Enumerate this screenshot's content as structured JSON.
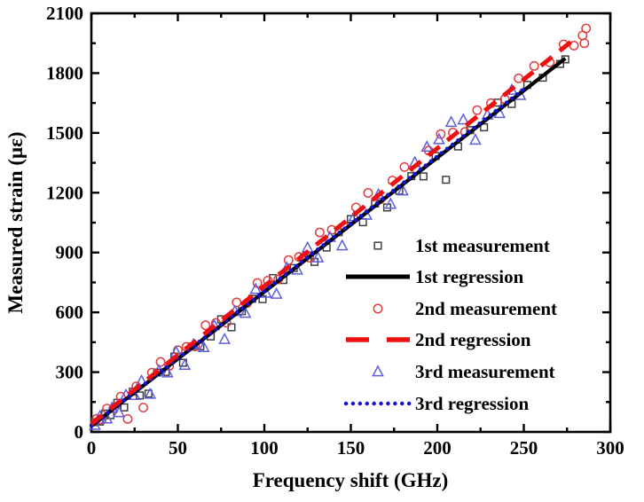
{
  "figure": {
    "background": "#ffffff",
    "frame_color": "#000000"
  },
  "chart_data": {
    "type": "scatter",
    "title": "",
    "xlabel": "Frequency shift (GHz)",
    "ylabel": "Measured strain (με)",
    "xlim": [
      0,
      300
    ],
    "ylim": [
      0,
      2100
    ],
    "xticks": [
      0,
      50,
      100,
      150,
      200,
      250,
      300
    ],
    "xticks_minor": [
      25,
      75,
      125,
      175,
      225,
      275
    ],
    "yticks": [
      0,
      300,
      600,
      900,
      1200,
      1500,
      1800,
      2100
    ],
    "yticks_minor": [
      150,
      450,
      750,
      1050,
      1350,
      1650,
      1950
    ],
    "grid": false,
    "legend_position": "inside-lower-right",
    "series": [
      {
        "name": "1st measurement",
        "kind": "scatter",
        "marker": "square",
        "color": "#3f3f3f",
        "points": [
          [
            2,
            49
          ],
          [
            5,
            52
          ],
          [
            8,
            92
          ],
          [
            11,
            84
          ],
          [
            15,
            146
          ],
          [
            19,
            123
          ],
          [
            24,
            202
          ],
          [
            28,
            183
          ],
          [
            33,
            192
          ],
          [
            38,
            298
          ],
          [
            43,
            301
          ],
          [
            48,
            378
          ],
          [
            53,
            347
          ],
          [
            58,
            428
          ],
          [
            63,
            429
          ],
          [
            69,
            479
          ],
          [
            75,
            565
          ],
          [
            81,
            525
          ],
          [
            87,
            606
          ],
          [
            93,
            668
          ],
          [
            99,
            666
          ],
          [
            105,
            772
          ],
          [
            111,
            762
          ],
          [
            117,
            822
          ],
          [
            123,
            876
          ],
          [
            129,
            853
          ],
          [
            136,
            925
          ],
          [
            143,
            1002
          ],
          [
            150,
            1068
          ],
          [
            157,
            1052
          ],
          [
            164,
            1146
          ],
          [
            171,
            1126
          ],
          [
            178,
            1210
          ],
          [
            185,
            1283
          ],
          [
            192,
            1282
          ],
          [
            199,
            1384
          ],
          [
            205,
            1265
          ],
          [
            212,
            1432
          ],
          [
            219,
            1514
          ],
          [
            227,
            1528
          ],
          [
            235,
            1652
          ],
          [
            243,
            1645
          ],
          [
            252,
            1741
          ],
          [
            261,
            1777
          ],
          [
            271,
            1846
          ],
          [
            274,
            1869
          ]
        ]
      },
      {
        "name": "1st regression",
        "kind": "line",
        "style": "solid",
        "color": "#000000",
        "line": {
          "x1": 0,
          "y1": 30,
          "x2": 274,
          "y2": 1874
        }
      },
      {
        "name": "2nd measurement",
        "kind": "scatter",
        "marker": "circle",
        "color": "#e03c3c",
        "points": [
          [
            3,
            66
          ],
          [
            6,
            61
          ],
          [
            9,
            117
          ],
          [
            13,
            117
          ],
          [
            17,
            177
          ],
          [
            21,
            65
          ],
          [
            26,
            229
          ],
          [
            30,
            122
          ],
          [
            35,
            297
          ],
          [
            40,
            351
          ],
          [
            45,
            331
          ],
          [
            50,
            410
          ],
          [
            55,
            427
          ],
          [
            60,
            429
          ],
          [
            66,
            535
          ],
          [
            72,
            547
          ],
          [
            78,
            548
          ],
          [
            84,
            650
          ],
          [
            90,
            646
          ],
          [
            96,
            747
          ],
          [
            102,
            759
          ],
          [
            108,
            765
          ],
          [
            114,
            862
          ],
          [
            120,
            878
          ],
          [
            126,
            874
          ],
          [
            132,
            1001
          ],
          [
            139,
            1014
          ],
          [
            146,
            1030
          ],
          [
            153,
            1126
          ],
          [
            160,
            1199
          ],
          [
            167,
            1167
          ],
          [
            174,
            1261
          ],
          [
            181,
            1329
          ],
          [
            188,
            1317
          ],
          [
            195,
            1411
          ],
          [
            202,
            1494
          ],
          [
            209,
            1502
          ],
          [
            216,
            1505
          ],
          [
            223,
            1614
          ],
          [
            231,
            1649
          ],
          [
            239,
            1669
          ],
          [
            247,
            1774
          ],
          [
            256,
            1836
          ],
          [
            265,
            1854
          ],
          [
            273,
            1944
          ],
          [
            279,
            1938
          ],
          [
            284,
            1989
          ],
          [
            285,
            1950
          ],
          [
            286,
            2024
          ]
        ]
      },
      {
        "name": "2nd regression",
        "kind": "line",
        "style": "dashed",
        "color": "#ee0f0f",
        "line": {
          "x1": 0,
          "y1": 40,
          "x2": 278,
          "y2": 1962
        }
      },
      {
        "name": "3rd measurement",
        "kind": "scatter",
        "marker": "triangle",
        "color": "#5d5de0",
        "points": [
          [
            2,
            34
          ],
          [
            5,
            79
          ],
          [
            9,
            66
          ],
          [
            12,
            121
          ],
          [
            16,
            98
          ],
          [
            20,
            185
          ],
          [
            25,
            184
          ],
          [
            29,
            256
          ],
          [
            34,
            190
          ],
          [
            39,
            308
          ],
          [
            44,
            297
          ],
          [
            49,
            401
          ],
          [
            54,
            335
          ],
          [
            59,
            438
          ],
          [
            65,
            424
          ],
          [
            71,
            534
          ],
          [
            77,
            465
          ],
          [
            83,
            605
          ],
          [
            89,
            596
          ],
          [
            95,
            716
          ],
          [
            101,
            697
          ],
          [
            107,
            692
          ],
          [
            113,
            823
          ],
          [
            119,
            813
          ],
          [
            125,
            924
          ],
          [
            131,
            874
          ],
          [
            138,
            977
          ],
          [
            145,
            934
          ],
          [
            152,
            1081
          ],
          [
            159,
            1088
          ],
          [
            166,
            1191
          ],
          [
            173,
            1143
          ],
          [
            180,
            1210
          ],
          [
            187,
            1352
          ],
          [
            194,
            1430
          ],
          [
            201,
            1467
          ],
          [
            208,
            1554
          ],
          [
            215,
            1566
          ],
          [
            222,
            1465
          ],
          [
            229,
            1591
          ],
          [
            236,
            1598
          ],
          [
            243,
            1715
          ],
          [
            248,
            1689
          ]
        ]
      },
      {
        "name": "3rd regression",
        "kind": "line",
        "style": "dotted",
        "color": "#1111cc",
        "line": {
          "x1": 0,
          "y1": 32,
          "x2": 250,
          "y2": 1720
        }
      }
    ],
    "legend": [
      {
        "label": "1st measurement",
        "swatch": "square-marker",
        "color": "#3f3f3f"
      },
      {
        "label": "1st regression",
        "swatch": "solid-line",
        "color": "#000000"
      },
      {
        "label": "2nd measurement",
        "swatch": "circle-marker",
        "color": "#e03c3c"
      },
      {
        "label": "2nd regression",
        "swatch": "dashed-line",
        "color": "#ee0f0f"
      },
      {
        "label": "3rd measurement",
        "swatch": "triangle-marker",
        "color": "#5d5de0"
      },
      {
        "label": "3rd regression",
        "swatch": "dotted-line",
        "color": "#1111cc"
      }
    ]
  }
}
